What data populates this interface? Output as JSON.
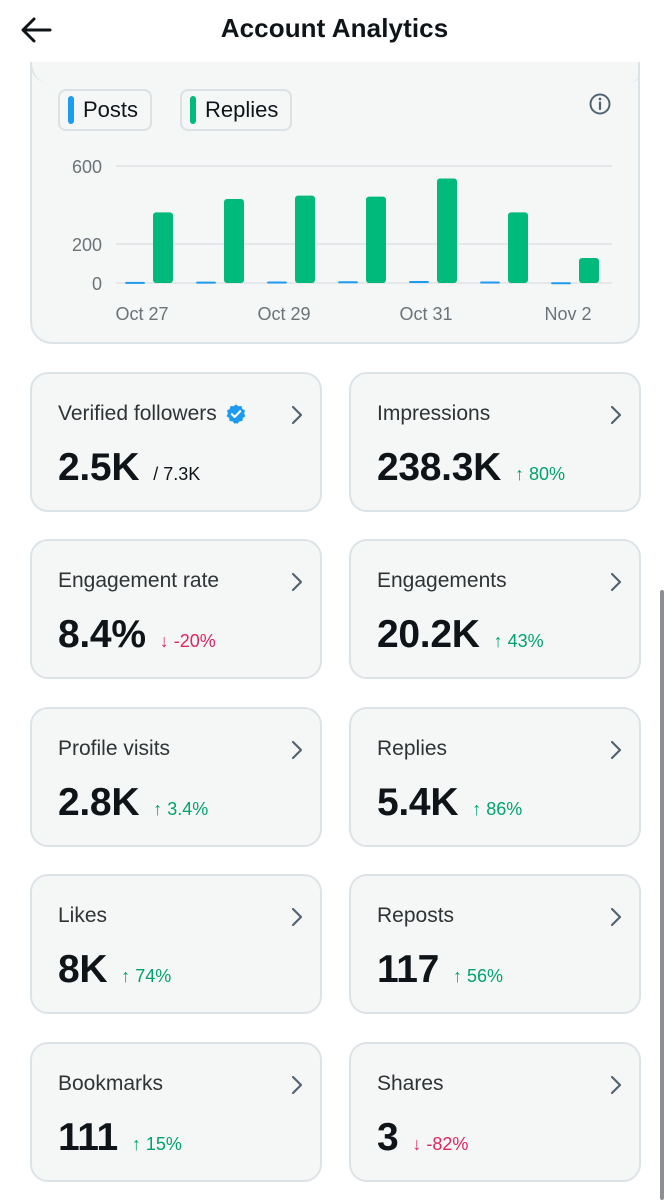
{
  "header": {
    "title": "Account Analytics"
  },
  "legend": {
    "posts_label": "Posts",
    "replies_label": "Replies"
  },
  "colors": {
    "posts": "#1d9bf0",
    "replies": "#00ba7c",
    "up": "#00a36c",
    "down": "#e0245e"
  },
  "chart_data": {
    "type": "bar",
    "categories": [
      "Oct 27",
      "Oct 28",
      "Oct 29",
      "Oct 30",
      "Oct 31",
      "Nov 1",
      "Nov 2"
    ],
    "x_tick_labels": [
      "Oct 27",
      "Oct 29",
      "Oct 31",
      "Nov 2"
    ],
    "y_tick_labels": [
      "600",
      "200",
      "0"
    ],
    "y_ticks": [
      600,
      200,
      0
    ],
    "ylim": [
      0,
      600
    ],
    "series": [
      {
        "name": "Posts",
        "values": [
          6,
          7,
          8,
          9,
          10,
          8,
          4
        ]
      },
      {
        "name": "Replies",
        "values": [
          362,
          431,
          448,
          443,
          536,
          362,
          128
        ]
      }
    ],
    "legend_position": "top-left"
  },
  "stats": [
    {
      "label": "Verified followers",
      "value": "2.5K",
      "sub": "/ 7.3K",
      "verified": true
    },
    {
      "label": "Impressions",
      "value": "238.3K",
      "change": "↑ 80%",
      "direction": "up"
    },
    {
      "label": "Engagement rate",
      "value": "8.4%",
      "change": "↓ -20%",
      "direction": "down"
    },
    {
      "label": "Engagements",
      "value": "20.2K",
      "change": "↑ 43%",
      "direction": "up"
    },
    {
      "label": "Profile visits",
      "value": "2.8K",
      "change": "↑ 3.4%",
      "direction": "up"
    },
    {
      "label": "Replies",
      "value": "5.4K",
      "change": "↑ 86%",
      "direction": "up"
    },
    {
      "label": "Likes",
      "value": "8K",
      "change": "↑ 74%",
      "direction": "up"
    },
    {
      "label": "Reposts",
      "value": "117",
      "change": "↑ 56%",
      "direction": "up"
    },
    {
      "label": "Bookmarks",
      "value": "111",
      "change": "↑ 15%",
      "direction": "up"
    },
    {
      "label": "Shares",
      "value": "3",
      "change": "↓ -82%",
      "direction": "down"
    }
  ]
}
